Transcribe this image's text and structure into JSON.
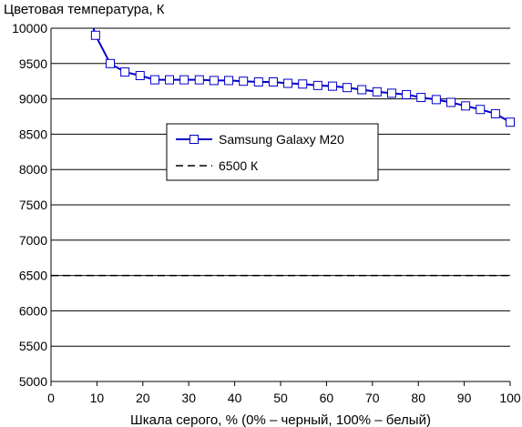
{
  "chart_data": {
    "type": "line",
    "title": "",
    "ylabel": "Цветовая температура, К",
    "xlabel": "Шкала серого, % (0% – черный, 100% – белый)",
    "xlim": [
      0,
      100
    ],
    "ylim": [
      5000,
      10000
    ],
    "x_ticks": [
      0,
      10,
      20,
      30,
      40,
      50,
      60,
      70,
      80,
      90,
      100
    ],
    "y_ticks": [
      5000,
      5500,
      6000,
      6500,
      7000,
      7500,
      8000,
      8500,
      9000,
      9500,
      10000
    ],
    "grid": "horizontal",
    "legend_position": "center-right",
    "series": [
      {
        "name": "Samsung Galaxy M20",
        "color": "#0000cc",
        "line_style": "solid",
        "marker": "square",
        "x": [
          9,
          9.7,
          12.9,
          16.1,
          19.4,
          22.6,
          25.8,
          29,
          32.3,
          35.5,
          38.7,
          41.9,
          45.2,
          48.4,
          51.6,
          54.8,
          58.1,
          61.3,
          64.5,
          67.7,
          71,
          74.2,
          77.4,
          80.6,
          83.9,
          87.1,
          90.3,
          93.5,
          96.8,
          100
        ],
        "y": [
          10050,
          9900,
          9500,
          9380,
          9330,
          9270,
          9270,
          9270,
          9270,
          9260,
          9260,
          9250,
          9240,
          9240,
          9220,
          9210,
          9190,
          9180,
          9160,
          9130,
          9100,
          9080,
          9060,
          9020,
          8990,
          8950,
          8900,
          8850,
          8790,
          8670
        ]
      },
      {
        "name": "6500 К",
        "color": "#000000",
        "line_style": "dashed",
        "marker": "none",
        "x": [
          0,
          100
        ],
        "y": [
          6500,
          6500
        ]
      }
    ]
  }
}
